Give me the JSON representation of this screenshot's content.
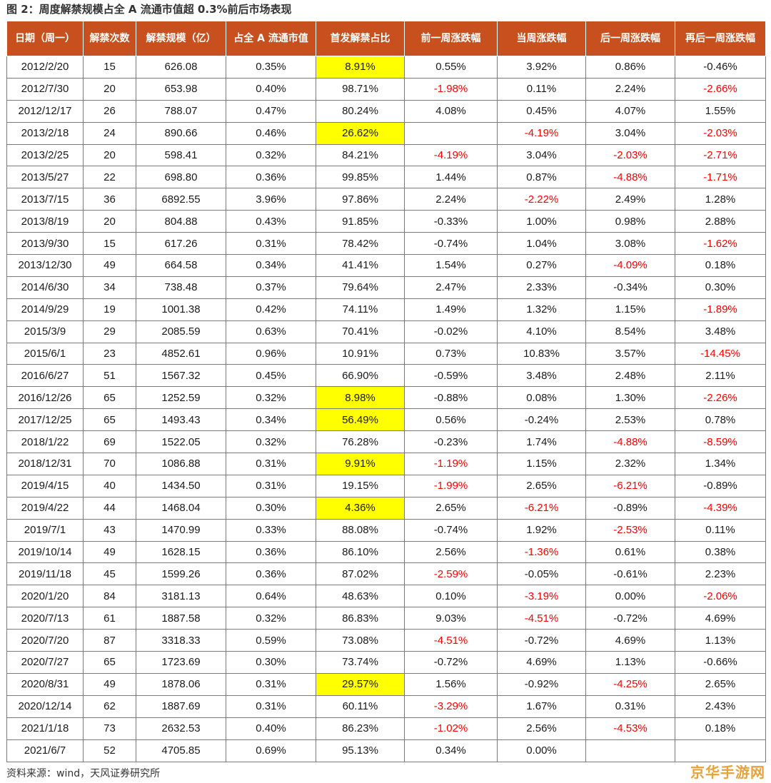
{
  "title": "图 2：周度解禁规模占全 A 流通市值超 0.3%前后市场表现",
  "headers": [
    "日期（周一）",
    "解禁次数",
    "解禁规模（亿）",
    "占全 A 流通市值",
    "首发解禁占比",
    "前一周涨跌幅",
    "当周涨跌幅",
    "后一周涨跌幅",
    "再后一周涨跌幅"
  ],
  "rows": [
    [
      "2012/2/20",
      "15",
      "626.08",
      "0.35%",
      "8.91%",
      "0.55%",
      "3.92%",
      "0.86%",
      "-0.46%"
    ],
    [
      "2012/7/30",
      "20",
      "653.98",
      "0.40%",
      "98.71%",
      "-1.98%",
      "0.11%",
      "2.24%",
      "-2.66%"
    ],
    [
      "2012/12/17",
      "26",
      "788.07",
      "0.47%",
      "80.24%",
      "4.08%",
      "0.45%",
      "4.07%",
      "1.55%"
    ],
    [
      "2013/2/18",
      "24",
      "890.66",
      "0.46%",
      "26.62%",
      "",
      "-4.19%",
      "3.04%",
      "-2.03%"
    ],
    [
      "2013/2/25",
      "20",
      "598.41",
      "0.32%",
      "84.21%",
      "-4.19%",
      "3.04%",
      "-2.03%",
      "-2.71%"
    ],
    [
      "2013/5/27",
      "22",
      "698.80",
      "0.36%",
      "99.85%",
      "1.44%",
      "0.87%",
      "-4.88%",
      "-1.71%"
    ],
    [
      "2013/7/15",
      "36",
      "6892.55",
      "3.96%",
      "97.86%",
      "2.24%",
      "-2.22%",
      "2.49%",
      "1.28%"
    ],
    [
      "2013/8/19",
      "20",
      "804.88",
      "0.43%",
      "91.85%",
      "-0.33%",
      "1.00%",
      "0.98%",
      "2.88%"
    ],
    [
      "2013/9/30",
      "15",
      "617.26",
      "0.31%",
      "78.42%",
      "-0.74%",
      "1.04%",
      "3.08%",
      "-1.62%"
    ],
    [
      "2013/12/30",
      "49",
      "664.58",
      "0.34%",
      "41.41%",
      "1.54%",
      "0.27%",
      "-4.09%",
      "0.18%"
    ],
    [
      "2014/6/30",
      "34",
      "738.48",
      "0.37%",
      "79.64%",
      "2.47%",
      "2.33%",
      "-0.34%",
      "0.30%"
    ],
    [
      "2014/9/29",
      "19",
      "1001.38",
      "0.42%",
      "74.11%",
      "1.49%",
      "1.32%",
      "1.15%",
      "-1.89%"
    ],
    [
      "2015/3/9",
      "29",
      "2085.59",
      "0.63%",
      "70.41%",
      "-0.02%",
      "4.10%",
      "8.54%",
      "3.48%"
    ],
    [
      "2015/6/1",
      "23",
      "4852.61",
      "0.96%",
      "10.91%",
      "0.73%",
      "10.83%",
      "3.57%",
      "-14.45%"
    ],
    [
      "2016/6/27",
      "51",
      "1567.32",
      "0.45%",
      "66.90%",
      "-0.59%",
      "3.48%",
      "2.48%",
      "2.11%"
    ],
    [
      "2016/12/26",
      "65",
      "1252.59",
      "0.32%",
      "8.98%",
      "-0.88%",
      "0.08%",
      "1.30%",
      "-2.26%"
    ],
    [
      "2017/12/25",
      "65",
      "1493.43",
      "0.34%",
      "56.49%",
      "0.56%",
      "-0.24%",
      "2.53%",
      "0.78%"
    ],
    [
      "2018/1/22",
      "69",
      "1522.05",
      "0.32%",
      "76.28%",
      "-0.23%",
      "1.74%",
      "-4.88%",
      "-8.59%"
    ],
    [
      "2018/12/31",
      "70",
      "1086.88",
      "0.31%",
      "9.91%",
      "-1.19%",
      "1.15%",
      "2.32%",
      "1.34%"
    ],
    [
      "2019/4/15",
      "40",
      "1434.50",
      "0.31%",
      "19.15%",
      "-1.99%",
      "2.65%",
      "-6.21%",
      "-0.89%"
    ],
    [
      "2019/4/22",
      "44",
      "1468.04",
      "0.30%",
      "4.36%",
      "2.65%",
      "-6.21%",
      "-0.89%",
      "-4.39%"
    ],
    [
      "2019/7/1",
      "43",
      "1470.99",
      "0.33%",
      "88.08%",
      "-0.74%",
      "1.92%",
      "-2.53%",
      "0.11%"
    ],
    [
      "2019/10/14",
      "49",
      "1628.15",
      "0.36%",
      "86.10%",
      "2.56%",
      "-1.36%",
      "0.61%",
      "0.38%"
    ],
    [
      "2019/11/18",
      "45",
      "1599.26",
      "0.36%",
      "87.02%",
      "-2.59%",
      "-0.05%",
      "-0.61%",
      "2.23%"
    ],
    [
      "2020/1/20",
      "84",
      "3181.13",
      "0.64%",
      "48.63%",
      "0.10%",
      "-3.19%",
      "0.00%",
      "-2.06%"
    ],
    [
      "2020/7/13",
      "61",
      "1887.58",
      "0.32%",
      "86.83%",
      "9.03%",
      "-4.51%",
      "-0.72%",
      "4.69%"
    ],
    [
      "2020/7/20",
      "87",
      "3318.33",
      "0.59%",
      "73.08%",
      "-4.51%",
      "-0.72%",
      "4.69%",
      "1.13%"
    ],
    [
      "2020/7/27",
      "65",
      "1723.69",
      "0.30%",
      "73.74%",
      "-0.72%",
      "4.69%",
      "1.13%",
      "-0.66%"
    ],
    [
      "2020/8/31",
      "49",
      "1878.06",
      "0.31%",
      "29.57%",
      "1.56%",
      "-0.92%",
      "-4.25%",
      "2.65%"
    ],
    [
      "2020/12/14",
      "62",
      "1887.69",
      "0.31%",
      "60.11%",
      "-3.29%",
      "1.67%",
      "0.31%",
      "2.43%"
    ],
    [
      "2021/1/18",
      "73",
      "2632.53",
      "0.40%",
      "86.23%",
      "-1.02%",
      "2.56%",
      "-4.53%",
      "0.18%"
    ],
    [
      "2021/6/7",
      "52",
      "4705.85",
      "0.69%",
      "95.13%",
      "0.34%",
      "0.00%",
      "",
      ""
    ]
  ],
  "red_cells": [
    [
      1,
      5
    ],
    [
      1,
      8
    ],
    [
      3,
      6
    ],
    [
      3,
      8
    ],
    [
      4,
      5
    ],
    [
      4,
      7
    ],
    [
      4,
      8
    ],
    [
      5,
      7
    ],
    [
      5,
      8
    ],
    [
      6,
      6
    ],
    [
      8,
      8
    ],
    [
      9,
      7
    ],
    [
      11,
      8
    ],
    [
      13,
      8
    ],
    [
      15,
      8
    ],
    [
      17,
      7
    ],
    [
      17,
      8
    ],
    [
      18,
      5
    ],
    [
      19,
      5
    ],
    [
      19,
      7
    ],
    [
      20,
      6
    ],
    [
      20,
      8
    ],
    [
      21,
      7
    ],
    [
      22,
      6
    ],
    [
      23,
      5
    ],
    [
      24,
      6
    ],
    [
      24,
      8
    ],
    [
      25,
      6
    ],
    [
      26,
      5
    ],
    [
      28,
      7
    ],
    [
      29,
      5
    ],
    [
      30,
      5
    ],
    [
      30,
      7
    ]
  ],
  "highlight_cells": [
    [
      0,
      4
    ],
    [
      3,
      4
    ],
    [
      15,
      4
    ],
    [
      16,
      4
    ],
    [
      18,
      4
    ],
    [
      20,
      4
    ],
    [
      28,
      4
    ]
  ],
  "colors": {
    "header_bg": "#c8501e",
    "header_text": "#ffffff",
    "negative_text": "#ff0000",
    "highlight_bg": "#ffff00"
  },
  "source": "资料来源：wind，天风证券研究所",
  "watermark": "京华手游网"
}
